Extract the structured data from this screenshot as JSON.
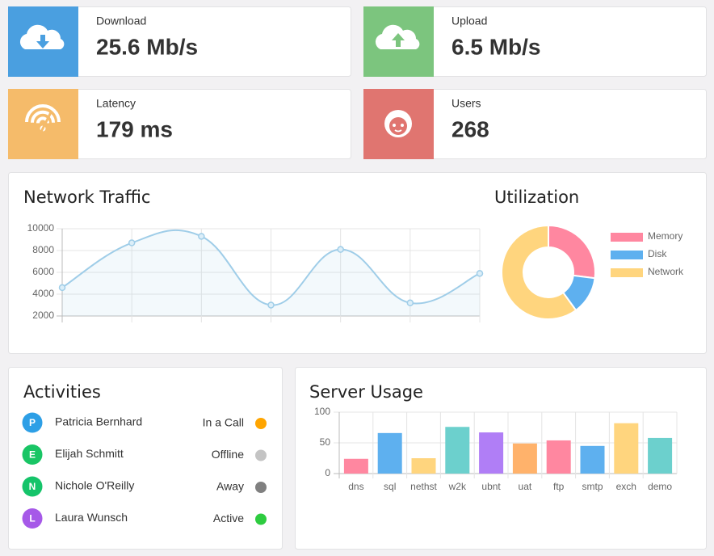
{
  "stats": [
    {
      "label": "Download",
      "value": "25.6 Mb/s",
      "color": "#4a9fe0"
    },
    {
      "label": "Upload",
      "value": "6.5 Mb/s",
      "color": "#7cc57e"
    },
    {
      "label": "Latency",
      "value": "179 ms",
      "color": "#f5bb6a"
    },
    {
      "label": "Users",
      "value": "268",
      "color": "#e07570"
    }
  ],
  "network_traffic": {
    "type": "line",
    "title": "Network Traffic",
    "categories": [
      null,
      null,
      null,
      null,
      null,
      null,
      null
    ],
    "values": [
      4600,
      8700,
      9300,
      3000,
      8100,
      3200,
      5900
    ],
    "color": "#9fcde8",
    "ylim": [
      2000,
      10000
    ],
    "yticks": [
      2000,
      4000,
      6000,
      8000,
      10000
    ],
    "grid": true
  },
  "utilization": {
    "type": "doughnut",
    "title": "Utilization",
    "categories": [
      "Memory",
      "Disk",
      "Network"
    ],
    "values": [
      27,
      13,
      60
    ],
    "colors": [
      "#ff87a0",
      "#5eb0ef",
      "#ffd57e"
    ],
    "legend": "right"
  },
  "activities": {
    "title": "Activities",
    "items": [
      {
        "initial": "P",
        "name": "Patricia Bernhard",
        "status": "In a Call",
        "avatar_color": "#2d9fe6",
        "status_color": "#ffa500"
      },
      {
        "initial": "E",
        "name": "Elijah Schmitt",
        "status": "Offline",
        "avatar_color": "#19c565",
        "status_color": "#c4c4c4"
      },
      {
        "initial": "N",
        "name": "Nichole O'Reilly",
        "status": "Away",
        "avatar_color": "#15c46a",
        "status_color": "#808080"
      },
      {
        "initial": "L",
        "name": "Laura Wunsch",
        "status": "Active",
        "avatar_color": "#a659e8",
        "status_color": "#2ecc40"
      }
    ]
  },
  "server_usage": {
    "type": "bar",
    "title": "Server Usage",
    "categories": [
      "dns",
      "sql",
      "nethst",
      "w2k",
      "ubnt",
      "uat",
      "ftp",
      "smtp",
      "exch",
      "demo"
    ],
    "values": [
      24,
      66,
      25,
      76,
      67,
      49,
      54,
      45,
      82,
      58
    ],
    "colors": [
      "#ff87a0",
      "#5eb0ef",
      "#ffd57e",
      "#6cd0cd",
      "#b07ef6",
      "#ffb26b",
      "#ff87a0",
      "#5eb0ef",
      "#ffd57e",
      "#6cd0cd"
    ],
    "ylim": [
      0,
      100
    ],
    "yticks": [
      0,
      50,
      100
    ],
    "grid": true
  }
}
